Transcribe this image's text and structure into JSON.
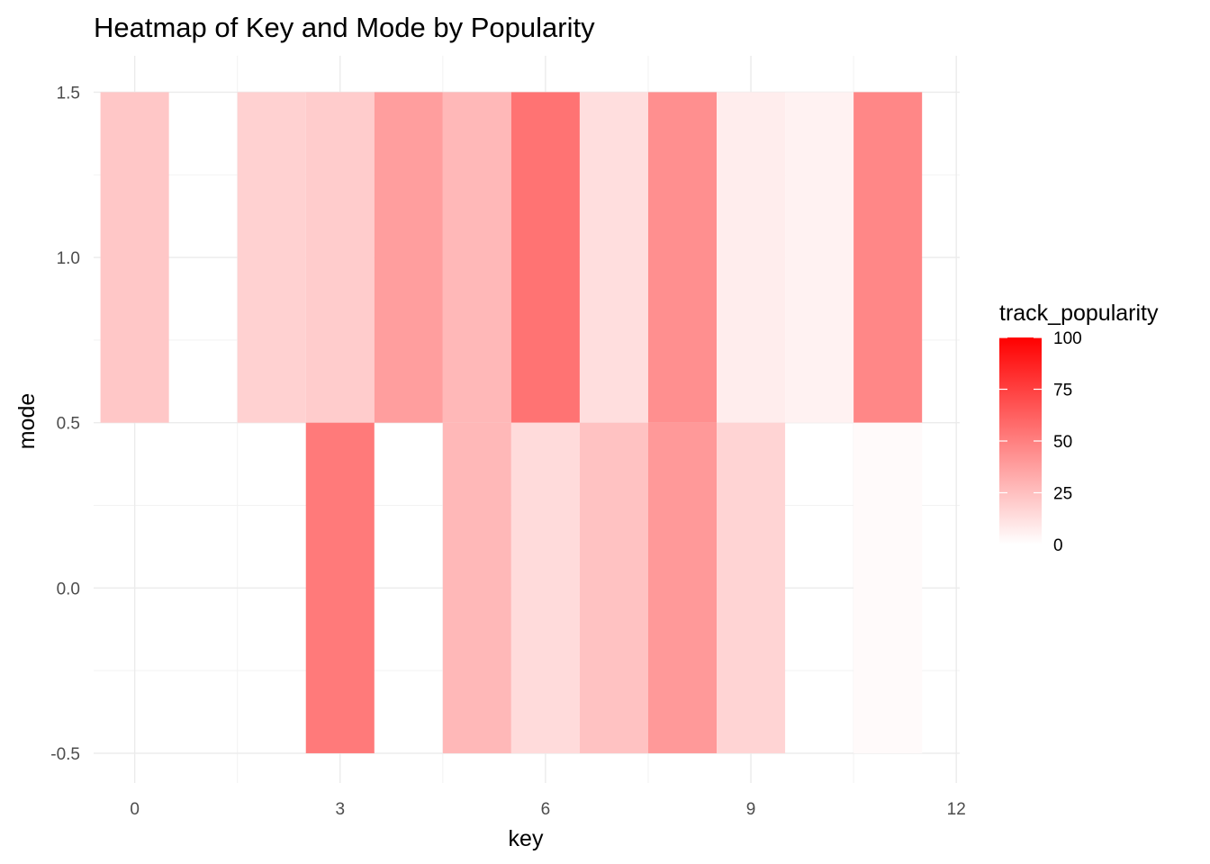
{
  "chart_data": {
    "type": "heatmap",
    "title": "Heatmap of Key and Mode by Popularity",
    "xlabel": "key",
    "ylabel": "mode",
    "xlim": [
      -0.6,
      12.05
    ],
    "ylim": [
      -0.59,
      1.61
    ],
    "x_ticks": [
      0,
      3,
      6,
      9,
      12
    ],
    "x_tick_labels": [
      "0",
      "3",
      "6",
      "9",
      "12"
    ],
    "y_ticks": [
      -0.5,
      0.0,
      0.5,
      1.0,
      1.5
    ],
    "y_tick_labels": [
      "-0.5",
      "0.0",
      "0.5",
      "1.0",
      "1.5"
    ],
    "grid": true,
    "legend": {
      "title": "track_popularity",
      "position": "right",
      "ticks": [
        0,
        25,
        50,
        75,
        100
      ],
      "tick_labels": [
        "0",
        "25",
        "50",
        "75",
        "100"
      ],
      "low_color": "#ffffff",
      "high_color": "#ff0000",
      "limits": [
        0,
        100
      ]
    },
    "cells": [
      {
        "key": 0,
        "mode": 1,
        "track_popularity": 22
      },
      {
        "key": 2,
        "mode": 1,
        "track_popularity": 18
      },
      {
        "key": 3,
        "mode": 1,
        "track_popularity": 20
      },
      {
        "key": 4,
        "mode": 1,
        "track_popularity": 38
      },
      {
        "key": 5,
        "mode": 1,
        "track_popularity": 28
      },
      {
        "key": 6,
        "mode": 1,
        "track_popularity": 55
      },
      {
        "key": 7,
        "mode": 1,
        "track_popularity": 13
      },
      {
        "key": 8,
        "mode": 1,
        "track_popularity": 44
      },
      {
        "key": 9,
        "mode": 1,
        "track_popularity": 7
      },
      {
        "key": 10,
        "mode": 1,
        "track_popularity": 5
      },
      {
        "key": 11,
        "mode": 1,
        "track_popularity": 47
      },
      {
        "key": 3,
        "mode": 0,
        "track_popularity": 52
      },
      {
        "key": 5,
        "mode": 0,
        "track_popularity": 28
      },
      {
        "key": 6,
        "mode": 0,
        "track_popularity": 14
      },
      {
        "key": 7,
        "mode": 0,
        "track_popularity": 24
      },
      {
        "key": 8,
        "mode": 0,
        "track_popularity": 40
      },
      {
        "key": 9,
        "mode": 0,
        "track_popularity": 17
      },
      {
        "key": 11,
        "mode": 0,
        "track_popularity": 2
      }
    ]
  }
}
